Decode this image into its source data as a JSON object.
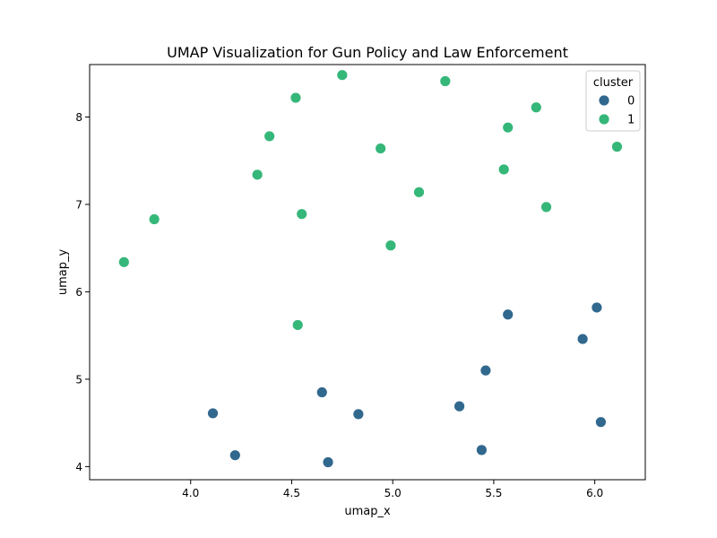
{
  "chart_data": {
    "type": "scatter",
    "title": "UMAP Visualization for Gun Policy and Law Enforcement",
    "xlabel": "umap_x",
    "ylabel": "umap_y",
    "xlim": [
      3.5,
      6.25
    ],
    "ylim": [
      3.85,
      8.6
    ],
    "xticks": [
      4.0,
      4.5,
      5.0,
      5.5,
      6.0
    ],
    "xtick_labels": [
      "4.0",
      "4.5",
      "5.0",
      "5.5",
      "6.0"
    ],
    "yticks": [
      4,
      5,
      6,
      7,
      8
    ],
    "ytick_labels": [
      "4",
      "5",
      "6",
      "7",
      "8"
    ],
    "grid": false,
    "legend": {
      "title": "cluster",
      "placement": "top-right"
    },
    "series": [
      {
        "name": "0",
        "color": "#31688e",
        "points": [
          {
            "x": 4.11,
            "y": 4.61
          },
          {
            "x": 4.22,
            "y": 4.13
          },
          {
            "x": 4.65,
            "y": 4.85
          },
          {
            "x": 4.68,
            "y": 4.05
          },
          {
            "x": 4.83,
            "y": 4.6
          },
          {
            "x": 5.33,
            "y": 4.69
          },
          {
            "x": 5.44,
            "y": 4.19
          },
          {
            "x": 5.46,
            "y": 5.1
          },
          {
            "x": 5.57,
            "y": 5.74
          },
          {
            "x": 5.94,
            "y": 5.46
          },
          {
            "x": 6.01,
            "y": 5.82
          },
          {
            "x": 6.03,
            "y": 4.51
          }
        ]
      },
      {
        "name": "1",
        "color": "#35b779",
        "points": [
          {
            "x": 3.67,
            "y": 6.34
          },
          {
            "x": 3.82,
            "y": 6.83
          },
          {
            "x": 4.33,
            "y": 7.34
          },
          {
            "x": 4.39,
            "y": 7.78
          },
          {
            "x": 4.52,
            "y": 8.22
          },
          {
            "x": 4.53,
            "y": 5.62
          },
          {
            "x": 4.55,
            "y": 6.89
          },
          {
            "x": 4.75,
            "y": 8.48
          },
          {
            "x": 4.94,
            "y": 7.64
          },
          {
            "x": 4.99,
            "y": 6.53
          },
          {
            "x": 5.13,
            "y": 7.14
          },
          {
            "x": 5.26,
            "y": 8.41
          },
          {
            "x": 5.55,
            "y": 7.4
          },
          {
            "x": 5.57,
            "y": 7.88
          },
          {
            "x": 5.71,
            "y": 8.11
          },
          {
            "x": 5.76,
            "y": 6.97
          },
          {
            "x": 6.11,
            "y": 7.66
          }
        ]
      }
    ]
  }
}
